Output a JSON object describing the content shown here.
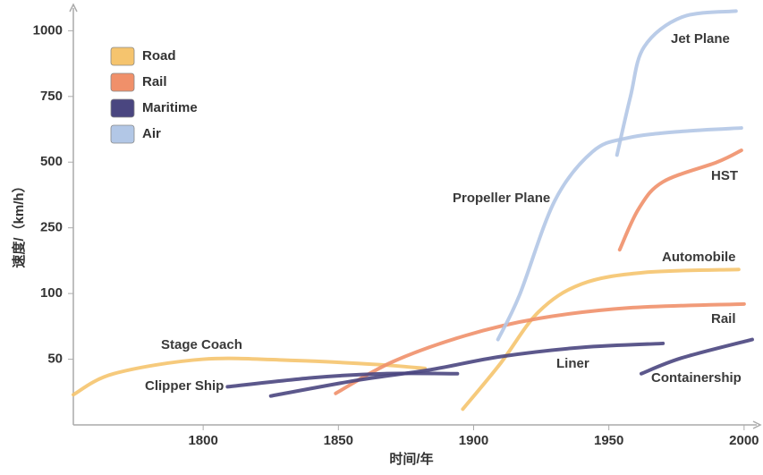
{
  "chart_data": {
    "type": "line",
    "xlabel": "时间/年",
    "ylabel": "速度/（km/h）",
    "xlim": [
      1752,
      2006
    ],
    "xticks": [
      1800,
      1850,
      1900,
      1950,
      2000
    ],
    "ylim": [
      0,
      1100
    ],
    "yticks": [
      50,
      100,
      250,
      500,
      750,
      1000
    ],
    "yscale": "tick-spaced",
    "legend": "upper left",
    "series": [
      {
        "name": "Road",
        "color": "#f5c46e",
        "lines": [
          {
            "label": "Stage Coach",
            "x": [
              1752,
              1767,
              1800,
              1834,
              1864,
              1882
            ],
            "values": [
              23,
              39,
              50,
              49,
              46,
              43
            ]
          },
          {
            "label": "Automobile",
            "x": [
              1896,
              1910,
              1924,
              1940,
              1963,
              1998
            ],
            "values": [
              12,
              47,
              86,
              122,
              148,
              155
            ]
          }
        ]
      },
      {
        "name": "Rail",
        "color": "#f0906a",
        "lines": [
          {
            "label": "Rail",
            "x": [
              1849,
              1870,
              1897,
              1924,
              1957,
              2000
            ],
            "values": [
              24,
              48,
              68,
              81,
              89,
              92
            ]
          },
          {
            "label": "HST",
            "x": [
              1954,
              1961,
              1970,
              1990,
              1999
            ],
            "values": [
              200,
              322,
              425,
              500,
              545
            ]
          }
        ]
      },
      {
        "name": "Maritime",
        "color": "#4a4680",
        "lines": [
          {
            "label": "Clipper Ship",
            "x": [
              1809,
              1841,
              1867,
              1894
            ],
            "values": [
              29,
              36,
              39,
              39
            ]
          },
          {
            "label": "Liner",
            "x": [
              1825,
              1857,
              1884,
              1910,
              1940,
              1970
            ],
            "values": [
              22,
              34,
              42,
              52,
              59,
              62
            ]
          },
          {
            "label": "Containership",
            "x": [
              1962,
              1977,
              2003
            ],
            "values": [
              39,
              51,
              65
            ]
          }
        ]
      },
      {
        "name": "Air",
        "color": "#b2c7e6",
        "lines": [
          {
            "label": "Propeller Plane",
            "x": [
              1909,
              1917,
              1930,
              1944,
              1957,
              1977,
              1999
            ],
            "values": [
              65,
              99,
              353,
              540,
              592,
              617,
              630
            ]
          },
          {
            "label": "Jet Plane",
            "x": [
              1953,
              1958,
              1963,
              1977,
              1997
            ],
            "values": [
              527,
              750,
              938,
              1052,
              1075
            ]
          }
        ]
      }
    ]
  }
}
